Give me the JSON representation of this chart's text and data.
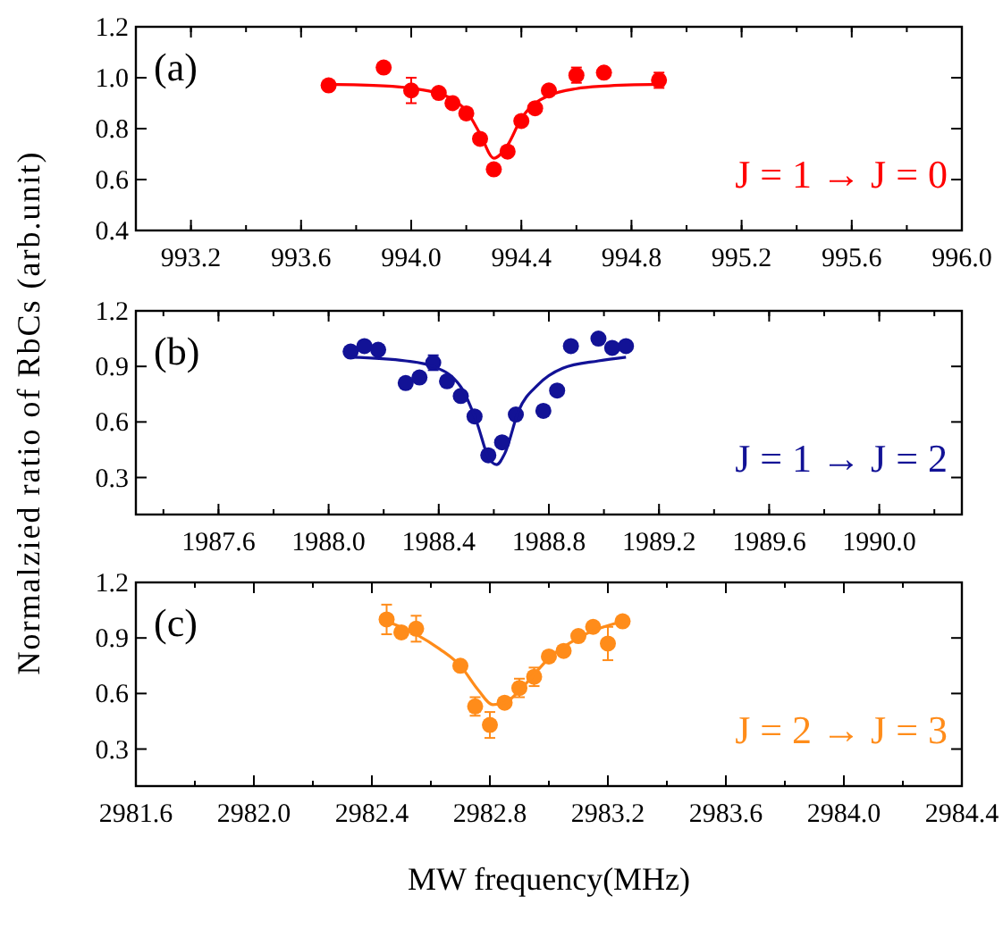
{
  "chart_data": [
    {
      "type": "scatter",
      "xlim": [
        993.0,
        996.0
      ],
      "ylim": [
        0.4,
        1.2
      ],
      "xticks": [
        993.2,
        993.6,
        {
          "value": 994,
          "label": "994.0"
        },
        994.4,
        994.8,
        995.2,
        995.6,
        {
          "value": 996,
          "label": "996.0"
        }
      ],
      "yticks": [
        0.4,
        0.6,
        0.8,
        {
          "value": 1,
          "label": "1.0"
        },
        1.2
      ],
      "annotations": [
        "(a)",
        "J = 1 → J = 0"
      ],
      "series": [
        {
          "marker": "circle",
          "color": "#ff0000",
          "x": [
            993.7,
            993.9,
            994.0,
            994.1,
            994.15,
            994.2,
            994.25,
            994.3,
            994.35,
            994.4,
            994.45,
            994.5,
            994.6,
            994.7,
            994.9
          ],
          "values": [
            0.97,
            1.04,
            0.95,
            0.94,
            0.9,
            0.86,
            0.76,
            0.64,
            0.71,
            0.83,
            0.88,
            0.95,
            1.01,
            1.02,
            0.99
          ],
          "errors": [
            null,
            null,
            0.05,
            null,
            null,
            null,
            null,
            null,
            null,
            null,
            null,
            null,
            0.03,
            null,
            0.03
          ]
        },
        {
          "type": "line",
          "marker": "none",
          "color": "#ff0000",
          "x": [
            993.7,
            993.9,
            994.0,
            994.1,
            994.15,
            994.2,
            994.25,
            994.3,
            994.35,
            994.4,
            994.45,
            994.5,
            994.6,
            994.7,
            994.9
          ],
          "values": [
            0.974,
            0.968,
            0.959,
            0.938,
            0.915,
            0.87,
            0.78,
            0.684,
            0.735,
            0.84,
            0.9,
            0.93,
            0.957,
            0.967,
            0.974
          ]
        }
      ]
    },
    {
      "type": "scatter",
      "xlim": [
        1987.3,
        1990.3
      ],
      "ylim": [
        0.1,
        1.2
      ],
      "xticks": [
        1987.6,
        {
          "value": 1988,
          "label": "1988.0"
        },
        1988.4,
        1988.8,
        1989.2,
        1989.6,
        {
          "value": 1990,
          "label": "1990.0"
        }
      ],
      "yticks": [
        0.3,
        0.6,
        0.9,
        1.2
      ],
      "ylabel": "Normalzied ratio of RbCs (arb.unit)",
      "annotations": [
        "(b)",
        "J = 1 → J = 2"
      ],
      "series": [
        {
          "marker": "circle",
          "color": "#121296",
          "x": [
            1988.08,
            1988.13,
            1988.18,
            1988.28,
            1988.33,
            1988.38,
            1988.43,
            1988.48,
            1988.53,
            1988.58,
            1988.63,
            1988.68,
            1988.78,
            1988.83,
            1988.88,
            1988.98,
            1989.03,
            1989.08
          ],
          "values": [
            0.98,
            1.01,
            0.99,
            0.81,
            0.84,
            0.92,
            0.82,
            0.74,
            0.63,
            0.42,
            0.49,
            0.64,
            0.66,
            0.77,
            1.01,
            1.05,
            1.0,
            1.01
          ],
          "errors": [
            null,
            null,
            null,
            null,
            null,
            0.04,
            null,
            null,
            null,
            null,
            null,
            null,
            null,
            null,
            null,
            null,
            null,
            null
          ]
        },
        {
          "type": "line",
          "marker": "none",
          "color": "#121296",
          "x": [
            1988.08,
            1988.28,
            1988.38,
            1988.48,
            1988.54,
            1988.58,
            1988.61,
            1988.64,
            1988.69,
            1988.76,
            1988.85,
            1988.98,
            1989.08
          ],
          "values": [
            0.95,
            0.93,
            0.9,
            0.79,
            0.59,
            0.41,
            0.37,
            0.43,
            0.66,
            0.8,
            0.89,
            0.93,
            0.95
          ]
        }
      ]
    },
    {
      "type": "scatter",
      "xlim": [
        2981.6,
        2984.4
      ],
      "ylim": [
        0.1,
        1.2
      ],
      "xticks": [
        2981.6,
        {
          "value": 2982,
          "label": "2982.0"
        },
        2982.4,
        2982.8,
        2983.2,
        2983.6,
        {
          "value": 2984,
          "label": "2984.0"
        },
        2984.4
      ],
      "yticks": [
        0.3,
        0.6,
        0.9,
        1.2
      ],
      "xlabel": "MW frequency(MHz)",
      "annotations": [
        "(c)",
        "J = 2 → J = 3"
      ],
      "series": [
        {
          "marker": "circle",
          "color": "#ff8c1a",
          "x": [
            2982.45,
            2982.5,
            2982.55,
            2982.7,
            2982.75,
            2982.8,
            2982.85,
            2982.9,
            2982.95,
            2983.0,
            2983.05,
            2983.1,
            2983.15,
            2983.2,
            2983.25
          ],
          "values": [
            1.0,
            0.93,
            0.95,
            0.75,
            0.53,
            0.43,
            0.55,
            0.63,
            0.69,
            0.8,
            0.83,
            0.91,
            0.96,
            0.87,
            0.99
          ],
          "errors": [
            0.08,
            null,
            0.07,
            null,
            0.05,
            0.07,
            null,
            0.05,
            0.05,
            null,
            null,
            null,
            null,
            0.09,
            null
          ]
        },
        {
          "type": "line",
          "marker": "none",
          "color": "#ff8c1a",
          "x": [
            2982.45,
            2982.55,
            2982.63,
            2982.7,
            2982.76,
            2982.81,
            2982.85,
            2982.92,
            2983.0,
            2983.1,
            2983.25
          ],
          "values": [
            0.99,
            0.92,
            0.84,
            0.75,
            0.62,
            0.54,
            0.55,
            0.65,
            0.79,
            0.9,
            0.99
          ]
        }
      ]
    }
  ]
}
